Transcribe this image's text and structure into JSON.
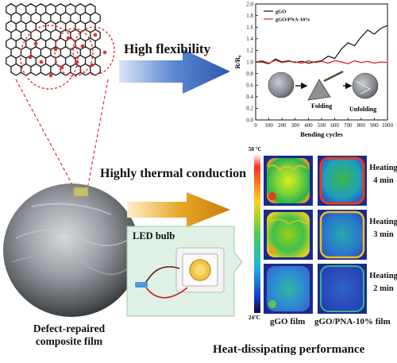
{
  "labels": {
    "high_flexibility": "High flexibility",
    "thermal_conduction": "Highly thermal conduction",
    "led_bulb": "LED bulb",
    "defect_repaired_line1": "Defect-repaired",
    "defect_repaired_line2": "composite film",
    "heat_dissipating": "Heat-dissipating performance",
    "folding": "Folding",
    "unfolding": "Unfolding"
  },
  "thermal_panel": {
    "scale_max": "50 °C",
    "scale_min": "24°C",
    "col1": "gGO film",
    "col2": "gGO/PNA-10% film",
    "rows": [
      {
        "line1": "Heating",
        "line2": "4 min"
      },
      {
        "line1": "Heating",
        "line2": "3 min"
      },
      {
        "line1": "Heating",
        "line2": "2 min"
      }
    ]
  },
  "colors": {
    "arrow_blue": "#2f5fb8",
    "arrow_gold": "#d18a10",
    "dash_red": "#e03030",
    "series_black": "#111111",
    "series_red": "#e01a1a",
    "led_panel_bg": "#dff0e4"
  },
  "chart_data": {
    "type": "line",
    "xlabel": "Bending cycles",
    "ylabel": "R/R₀",
    "xlim": [
      0,
      1000
    ],
    "ylim": [
      0,
      2.0
    ],
    "xticks": [
      0,
      100,
      200,
      300,
      400,
      500,
      600,
      700,
      800,
      900,
      1000
    ],
    "yticks": [
      0.0,
      0.2,
      0.4,
      0.6,
      0.8,
      1.0,
      1.2,
      1.4,
      1.6,
      1.8,
      2.0
    ],
    "series": [
      {
        "name": "gGO",
        "color": "#111111",
        "x": [
          0,
          50,
          100,
          150,
          200,
          250,
          300,
          350,
          400,
          450,
          500,
          550,
          600,
          650,
          700,
          750,
          800,
          850,
          900,
          950,
          1000
        ],
        "values": [
          1.0,
          1.0,
          0.97,
          1.05,
          1.0,
          1.02,
          0.99,
          1.01,
          0.98,
          1.0,
          1.02,
          1.1,
          1.06,
          1.22,
          1.33,
          1.28,
          1.43,
          1.55,
          1.48,
          1.58,
          1.63
        ]
      },
      {
        "name": "gGO/PNA-10%",
        "color": "#e01a1a",
        "x": [
          0,
          50,
          100,
          150,
          200,
          250,
          300,
          350,
          400,
          450,
          500,
          550,
          600,
          650,
          700,
          750,
          800,
          850,
          900,
          950,
          1000
        ],
        "values": [
          1.0,
          1.02,
          0.98,
          1.03,
          0.99,
          1.01,
          1.0,
          0.98,
          1.02,
          0.99,
          1.01,
          0.98,
          1.02,
          1.0,
          0.97,
          1.02,
          0.99,
          1.01,
          0.98,
          1.0,
          0.99
        ]
      }
    ]
  }
}
